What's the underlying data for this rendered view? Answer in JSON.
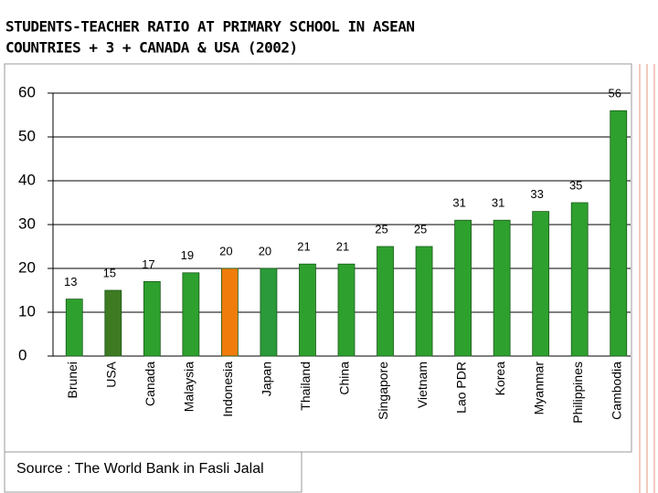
{
  "chart_data": {
    "type": "bar",
    "title": [
      "STUDENTS-TEACHER RATIO AT PRIMARY SCHOOL IN ASEAN",
      "COUNTRIES + 3 + CANADA & USA (2002)"
    ],
    "categories": [
      "Brunei",
      "USA",
      "Canada",
      "Malaysia",
      "Indonesia",
      "Japan",
      "Thailand",
      "China",
      "Singapore",
      "Vietnam",
      "Lao PDR",
      "Korea",
      "Myanmar",
      "Philippines",
      "Cambodia"
    ],
    "values": [
      13,
      15,
      17,
      19,
      20,
      20,
      21,
      21,
      25,
      25,
      31,
      31,
      33,
      35,
      56
    ],
    "colors": [
      "#2ea02e",
      "#3d7a22",
      "#2ea02e",
      "#2ea02e",
      "#f07c0c",
      "#2a9a3a",
      "#2ea02e",
      "#2ea02e",
      "#2ea02e",
      "#2ea02e",
      "#2ea02e",
      "#2ea02e",
      "#2ea02e",
      "#2ea02e",
      "#2ea02e"
    ],
    "ylim": [
      0,
      60
    ],
    "yticks": [
      0,
      10,
      20,
      30,
      40,
      50,
      60
    ],
    "grid": true,
    "source": "Source : The World Bank in Fasli Jalal"
  }
}
